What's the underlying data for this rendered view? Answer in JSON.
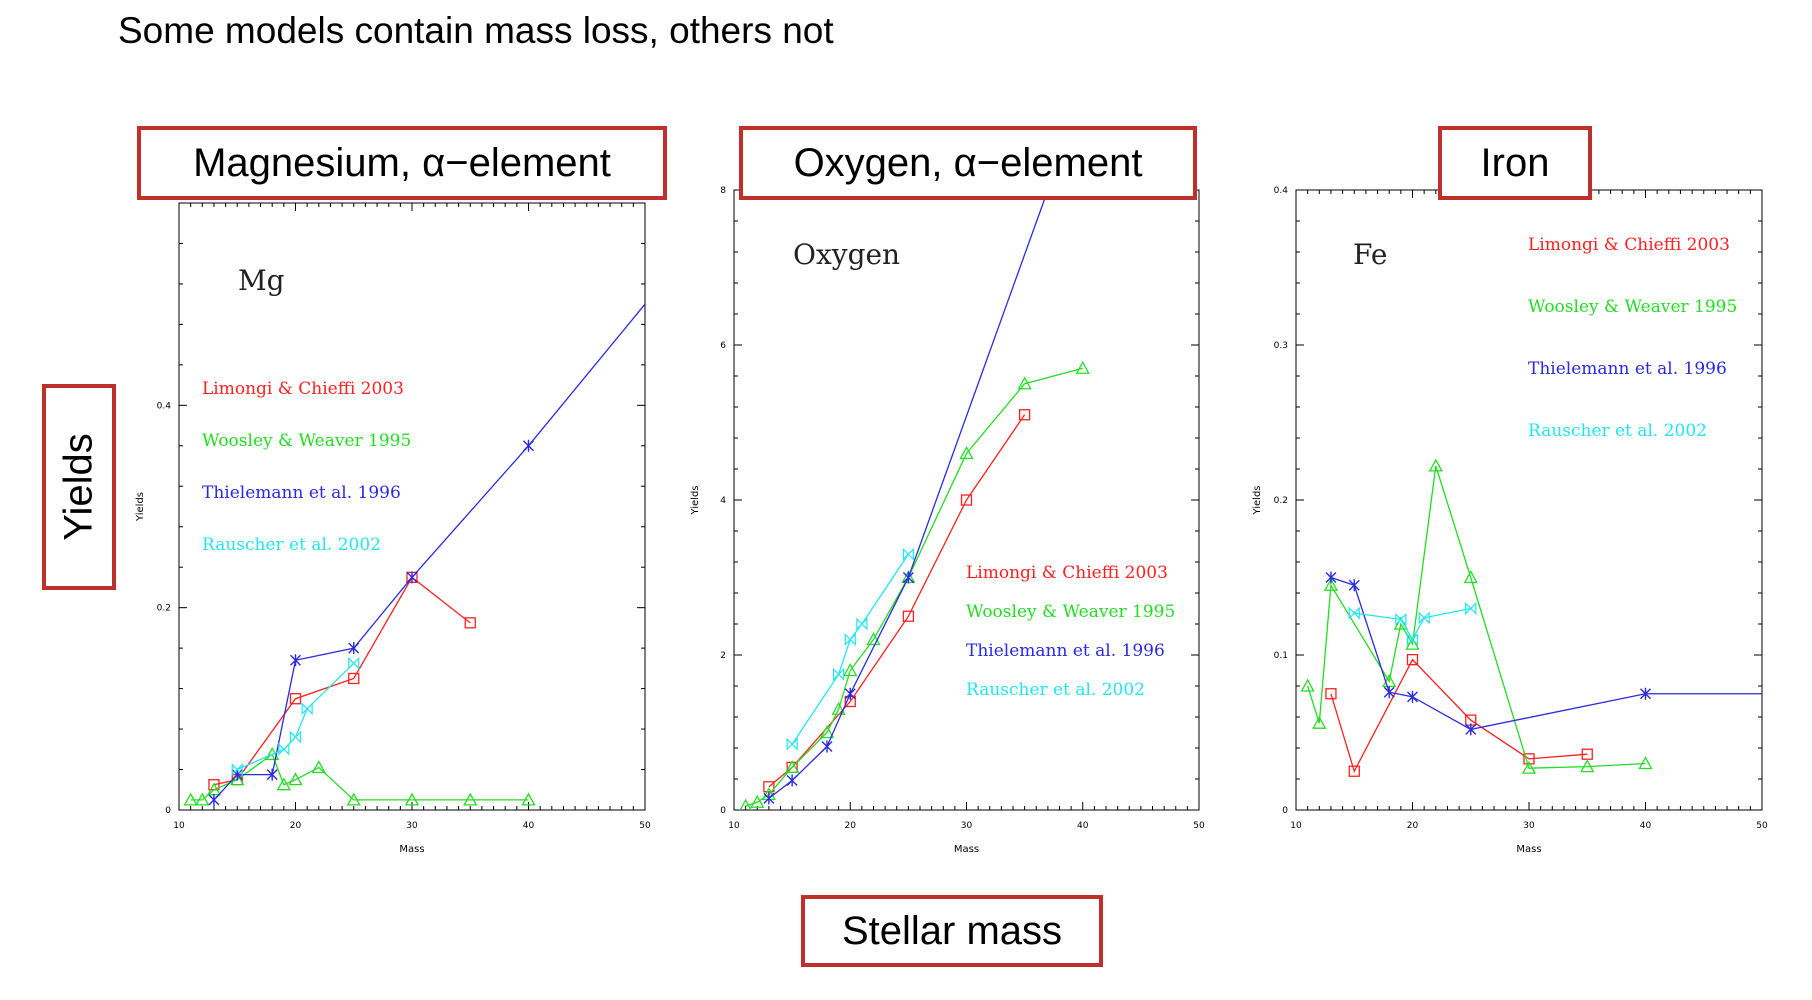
{
  "page": {
    "title": "Some models contain mass loss, others not",
    "yields_label": "Yields",
    "stellar_mass_label": "Stellar mass"
  },
  "panels_headers": [
    "Magnesium, α−element",
    "Oxygen, α−element",
    "Iron"
  ],
  "colors": {
    "Limongi & Chieffi 2003": "#ff2020",
    "Woosley & Weaver 1995": "#22dd22",
    "Thielemann et al. 1996": "#2a2ae0",
    "Rauscher et al. 2002": "#22e5f0",
    "frame": "#000000",
    "label_box": "#c0302a"
  },
  "chart_data": [
    {
      "type": "line",
      "element_label": "Mg",
      "xlabel": "Mass",
      "ylabel": "Yields",
      "xlim": [
        10,
        50
      ],
      "ylim": [
        0,
        0.6
      ],
      "xticks": [
        10,
        20,
        30,
        40,
        50
      ],
      "yticks": [
        0,
        0.2,
        0.4
      ],
      "ytick_labels": [
        "0",
        "0.2",
        "0.4"
      ],
      "legend_position": "center-left",
      "series": [
        {
          "name": "Limongi & Chieffi 2003",
          "marker": "square",
          "x": [
            13,
            15,
            20,
            25,
            30,
            35
          ],
          "y": [
            0.025,
            0.03,
            0.11,
            0.13,
            0.23,
            0.185
          ]
        },
        {
          "name": "Woosley & Weaver 1995",
          "marker": "triangle",
          "x": [
            11,
            12,
            13,
            15,
            18,
            19,
            20,
            22,
            25,
            30,
            35,
            40
          ],
          "y": [
            0.01,
            0.01,
            0.02,
            0.03,
            0.055,
            0.025,
            0.03,
            0.042,
            0.01,
            0.01,
            0.01,
            0.01
          ]
        },
        {
          "name": "Thielemann et al. 1996",
          "marker": "asterisk",
          "x": [
            13,
            15,
            18,
            20,
            25,
            30,
            40,
            50
          ],
          "y": [
            0.01,
            0.035,
            0.035,
            0.148,
            0.16,
            0.23,
            0.36,
            0.5
          ]
        },
        {
          "name": "Rauscher et al. 2002",
          "marker": "bowtie",
          "x": [
            15,
            19,
            20,
            21,
            25
          ],
          "y": [
            0.04,
            0.06,
            0.072,
            0.1,
            0.145
          ]
        }
      ]
    },
    {
      "type": "line",
      "element_label": "Oxygen",
      "xlabel": "Mass",
      "ylabel": "Yields",
      "xlim": [
        10,
        50
      ],
      "ylim": [
        0,
        8
      ],
      "xticks": [
        10,
        20,
        30,
        40,
        50
      ],
      "yticks": [
        0,
        2,
        4,
        6,
        8
      ],
      "ytick_labels": [
        "0",
        "2",
        "4",
        "6",
        "8"
      ],
      "legend_position": "lower-right",
      "series": [
        {
          "name": "Limongi & Chieffi 2003",
          "marker": "square",
          "x": [
            13,
            15,
            20,
            25,
            30,
            35
          ],
          "y": [
            0.3,
            0.55,
            1.4,
            2.5,
            4.0,
            5.1
          ]
        },
        {
          "name": "Woosley & Weaver 1995",
          "marker": "triangle",
          "x": [
            11,
            12,
            13,
            15,
            18,
            19,
            20,
            22,
            25,
            30,
            35,
            40
          ],
          "y": [
            0.05,
            0.1,
            0.2,
            0.55,
            1.0,
            1.3,
            1.8,
            2.2,
            3.0,
            4.6,
            5.5,
            5.7
          ]
        },
        {
          "name": "Thielemann et al. 1996",
          "marker": "asterisk",
          "x": [
            13,
            15,
            18,
            20,
            25,
            37
          ],
          "y": [
            0.15,
            0.38,
            0.82,
            1.5,
            3.0,
            8.0
          ]
        },
        {
          "name": "Rauscher et al. 2002",
          "marker": "bowtie",
          "x": [
            15,
            19,
            20,
            21,
            25
          ],
          "y": [
            0.85,
            1.75,
            2.2,
            2.4,
            3.3
          ]
        }
      ]
    },
    {
      "type": "line",
      "element_label": "Fe",
      "xlabel": "Mass",
      "ylabel": "Yields",
      "xlim": [
        10,
        50
      ],
      "ylim": [
        0,
        0.4
      ],
      "xticks": [
        10,
        20,
        30,
        40,
        50
      ],
      "yticks": [
        0,
        0.1,
        0.2,
        0.3,
        0.4
      ],
      "ytick_labels": [
        "0",
        "0.1",
        "0.2",
        "0.3",
        "0.4"
      ],
      "legend_position": "top-right",
      "series": [
        {
          "name": "Limongi & Chieffi 2003",
          "marker": "square",
          "x": [
            13,
            15,
            20,
            25,
            30,
            35
          ],
          "y": [
            0.075,
            0.025,
            0.097,
            0.058,
            0.033,
            0.036
          ]
        },
        {
          "name": "Woosley & Weaver 1995",
          "marker": "triangle",
          "x": [
            11,
            12,
            13,
            18,
            19,
            20,
            22,
            25,
            30,
            35,
            40
          ],
          "y": [
            0.08,
            0.056,
            0.145,
            0.083,
            0.12,
            0.107,
            0.222,
            0.15,
            0.027,
            0.028,
            0.03
          ]
        },
        {
          "name": "Thielemann et al. 1996",
          "marker": "asterisk",
          "x": [
            13,
            15,
            18,
            20,
            25,
            40,
            50
          ],
          "y": [
            0.15,
            0.145,
            0.076,
            0.073,
            0.052,
            0.075,
            0.075
          ]
        },
        {
          "name": "Rauscher et al. 2002",
          "marker": "bowtie",
          "x": [
            15,
            19,
            20,
            21,
            25
          ],
          "y": [
            0.127,
            0.123,
            0.11,
            0.124,
            0.13
          ]
        }
      ]
    }
  ]
}
